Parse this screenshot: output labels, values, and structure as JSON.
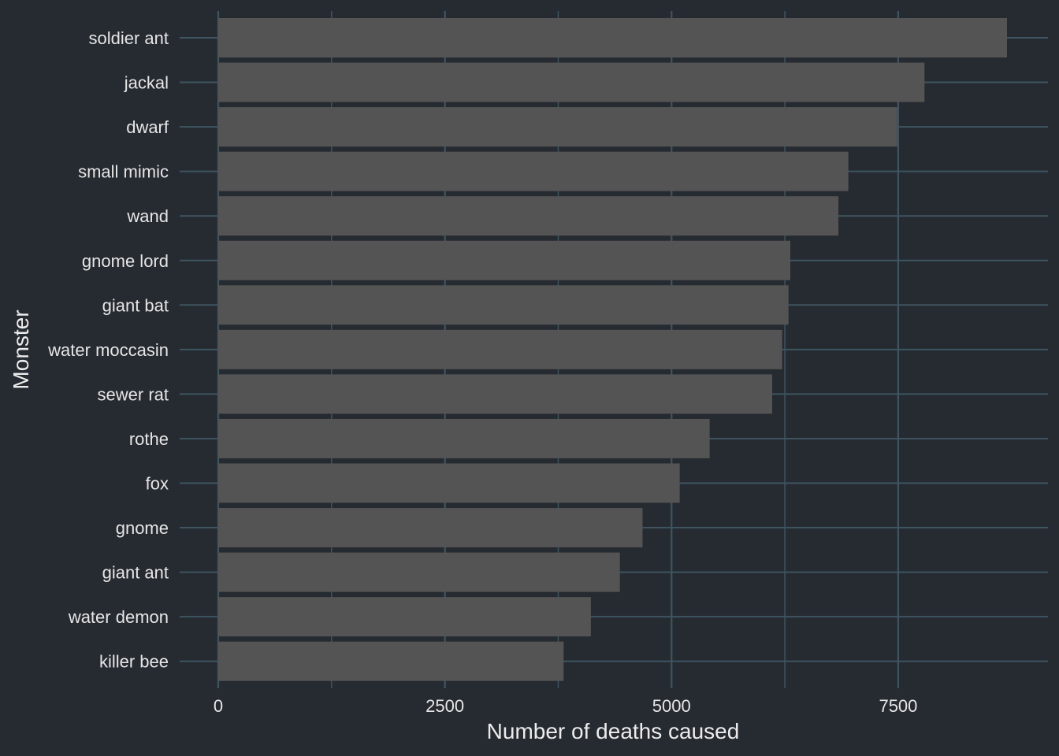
{
  "chart_data": {
    "type": "bar",
    "orientation": "horizontal",
    "xlabel": "Number of deaths caused",
    "ylabel": "Monster",
    "xlim": [
      0,
      8700
    ],
    "x_ticks": [
      0,
      2500,
      5000,
      7500
    ],
    "x_tick_labels": [
      "0",
      "2500",
      "5000",
      "7500"
    ],
    "categories": [
      "soldier ant",
      "jackal",
      "dwarf",
      "small mimic",
      "wand",
      "gnome lord",
      "giant bat",
      "water moccasin",
      "sewer rat",
      "rothe",
      "fox",
      "gnome",
      "giant ant",
      "water demon",
      "killer bee"
    ],
    "values": [
      8700,
      7790,
      7490,
      6950,
      6840,
      6310,
      6290,
      6220,
      6110,
      5420,
      5090,
      4680,
      4430,
      4110,
      3810
    ],
    "grid": true,
    "legend": "none",
    "colors": {
      "background": "#262a31",
      "bar": "#545454",
      "grid": "#3e5561",
      "text": "#e6e6e6"
    }
  }
}
